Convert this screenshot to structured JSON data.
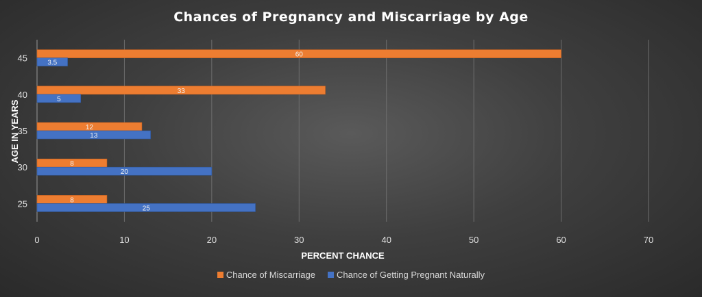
{
  "chart_data": {
    "type": "bar",
    "orientation": "horizontal",
    "title": "Chances of Pregnancy and Miscarriage by Age",
    "xlabel": "PERCENT CHANCE",
    "ylabel": "AGE IN YEARS",
    "categories": [
      "25",
      "30",
      "35",
      "40",
      "45"
    ],
    "xlim": [
      0,
      70
    ],
    "xticks": [
      0,
      10,
      20,
      30,
      40,
      50,
      60,
      70
    ],
    "grid": true,
    "legend_position": "bottom",
    "series": [
      {
        "name": "Chance of Miscarriage",
        "color": "#ED7D31",
        "values": [
          8,
          8,
          12,
          33,
          60
        ],
        "labels": [
          "8",
          "8",
          "12",
          "33",
          "60"
        ]
      },
      {
        "name": "Chance of Getting Pregnant Naturally",
        "color": "#4472C4",
        "values": [
          25,
          20,
          13,
          5,
          3.5
        ],
        "labels": [
          "25",
          "20",
          "13",
          "5",
          "3.5"
        ]
      }
    ]
  }
}
